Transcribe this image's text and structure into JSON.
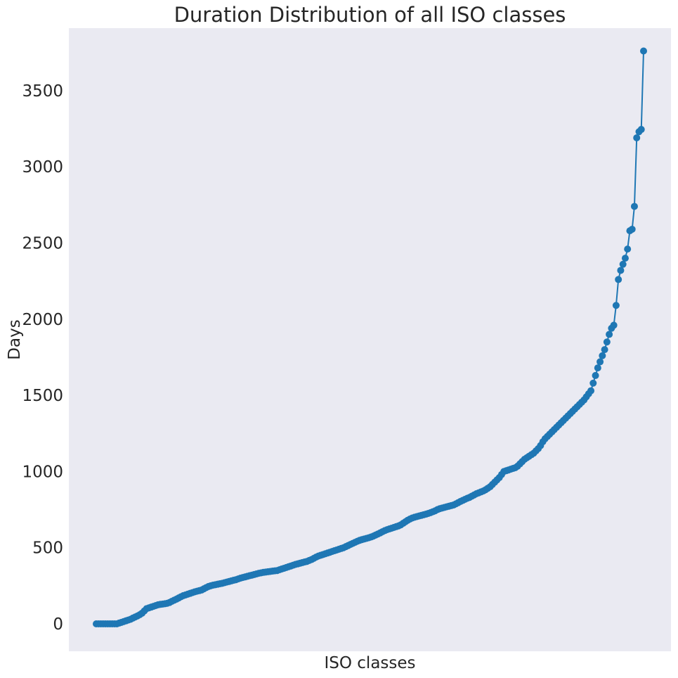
{
  "chart_data": {
    "type": "line",
    "title": "Duration Distribution of all ISO classes",
    "xlabel": "ISO classes",
    "ylabel": "Days",
    "ylim": [
      -180,
      3910
    ],
    "yticks": [
      0,
      500,
      1000,
      1500,
      2000,
      2500,
      3000,
      3500
    ],
    "grid": false,
    "legend": "none",
    "colors": {
      "background": "#eaeaf2",
      "series": "#1f77b4"
    },
    "marker": "circle",
    "series": [
      {
        "values": [
          0,
          0,
          0,
          0,
          0,
          0,
          0,
          0,
          0,
          0,
          5,
          10,
          15,
          20,
          25,
          30,
          38,
          45,
          52,
          60,
          70,
          85,
          100,
          105,
          110,
          115,
          120,
          125,
          128,
          130,
          132,
          135,
          140,
          148,
          155,
          162,
          170,
          178,
          185,
          190,
          195,
          200,
          205,
          210,
          214,
          218,
          222,
          230,
          238,
          245,
          250,
          254,
          257,
          260,
          263,
          266,
          270,
          274,
          278,
          282,
          286,
          290,
          295,
          300,
          304,
          308,
          312,
          316,
          320,
          324,
          328,
          332,
          335,
          338,
          340,
          342,
          344,
          346,
          348,
          350,
          355,
          360,
          365,
          370,
          375,
          380,
          385,
          390,
          394,
          398,
          402,
          406,
          410,
          416,
          422,
          430,
          438,
          445,
          450,
          455,
          460,
          465,
          470,
          475,
          480,
          485,
          490,
          495,
          500,
          507,
          514,
          521,
          528,
          535,
          542,
          548,
          553,
          557,
          561,
          565,
          570,
          576,
          583,
          590,
          597,
          605,
          612,
          618,
          623,
          628,
          633,
          638,
          643,
          650,
          660,
          670,
          680,
          688,
          695,
          700,
          704,
          708,
          712,
          716,
          720,
          725,
          730,
          736,
          742,
          750,
          756,
          760,
          764,
          768,
          772,
          776,
          780,
          787,
          795,
          803,
          810,
          817,
          824,
          830,
          838,
          846,
          854,
          860,
          866,
          872,
          880,
          890,
          900,
          915,
          930,
          945,
          960,
          980,
          1000,
          1005,
          1010,
          1015,
          1020,
          1025,
          1035,
          1050,
          1065,
          1080,
          1090,
          1100,
          1110,
          1120,
          1135,
          1150,
          1170,
          1195,
          1215,
          1230,
          1245,
          1260,
          1275,
          1290,
          1305,
          1320,
          1335,
          1350,
          1365,
          1380,
          1395,
          1410,
          1425,
          1440,
          1455,
          1470,
          1490,
          1510,
          1530,
          1580,
          1630,
          1680,
          1720,
          1760,
          1800,
          1850,
          1900,
          1940,
          1960,
          2090,
          2260,
          2320,
          2360,
          2400,
          2460,
          2580,
          2590,
          2740,
          3190,
          3230,
          3245,
          3760
        ]
      }
    ]
  }
}
